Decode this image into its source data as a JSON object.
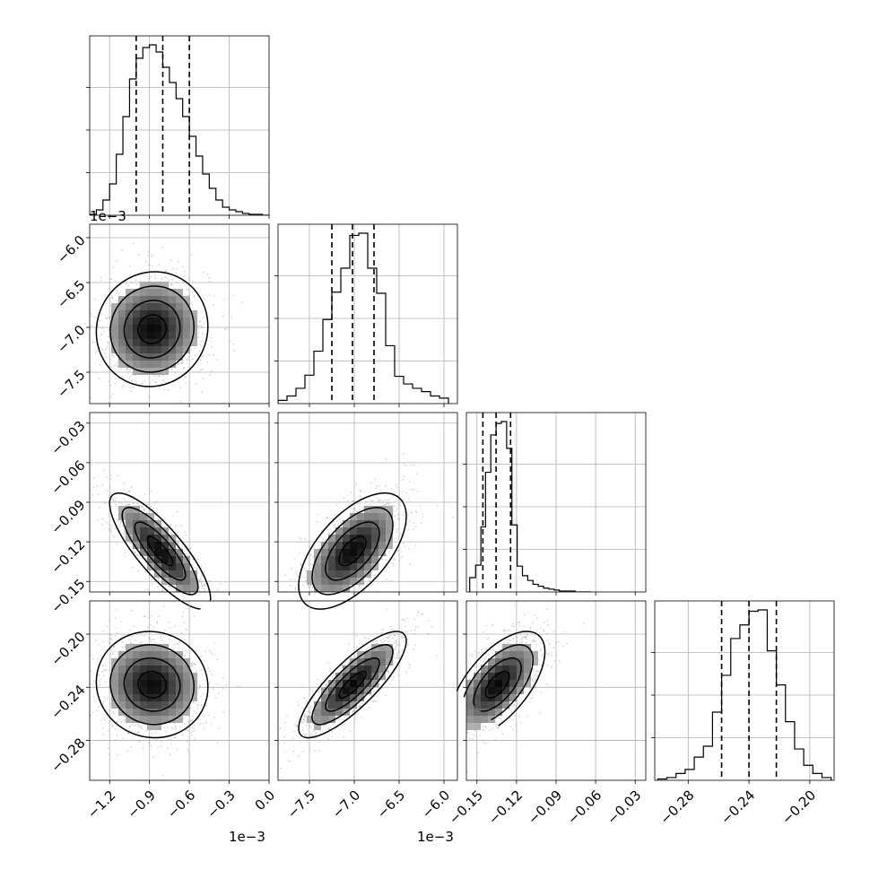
{
  "chart_data": {
    "type": "corner",
    "parameters": 4,
    "grid": true,
    "quantile_lines": "dashed",
    "offset_labels": {
      "x0": "1e−3",
      "x1": "1e−3",
      "y1": "1e−3"
    },
    "axes": [
      {
        "range": [
          -1.35,
          0.0
        ],
        "ticks": [
          -1.2,
          -0.9,
          -0.6,
          -0.3,
          0.0
        ],
        "tick_labels": [
          "−1.2",
          "−0.9",
          "−0.6",
          "−0.3",
          "0.0"
        ]
      },
      {
        "range": [
          -7.85,
          -5.85
        ],
        "ticks": [
          -7.5,
          -7.0,
          -6.5,
          -6.0
        ],
        "tick_labels": [
          "−7.5",
          "−7.0",
          "−6.5",
          "−6.0"
        ]
      },
      {
        "range": [
          -0.158,
          -0.022
        ],
        "ticks": [
          -0.15,
          -0.12,
          -0.09,
          -0.06,
          -0.03
        ],
        "tick_labels": [
          "−0.15",
          "−0.12",
          "−0.09",
          "−0.06",
          "−0.03"
        ]
      },
      {
        "range": [
          -0.302,
          -0.184
        ],
        "ticks": [
          -0.28,
          -0.24,
          -0.2
        ],
        "tick_labels": [
          "−0.28",
          "−0.24",
          "−0.20"
        ]
      }
    ],
    "y_axes": [
      null,
      {
        "range": [
          -7.85,
          -5.85
        ],
        "ticks": [
          -7.5,
          -7.0,
          -6.5,
          -6.0
        ],
        "tick_labels": [
          "−7.5",
          "−7.0",
          "−6.5",
          "−6.0"
        ]
      },
      {
        "range": [
          -0.158,
          -0.022
        ],
        "ticks": [
          -0.15,
          -0.12,
          -0.09,
          -0.06,
          -0.03
        ],
        "tick_labels": [
          "−0.15",
          "−0.12",
          "−0.09",
          "−0.06",
          "−0.03"
        ]
      },
      {
        "range": [
          -0.31,
          -0.175
        ],
        "ticks": [
          -0.28,
          -0.24,
          -0.2
        ],
        "tick_labels": [
          "−0.28",
          "−0.24",
          "−0.20"
        ]
      }
    ],
    "marginals": [
      {
        "quantiles": [
          -1.0,
          -0.8,
          -0.6
        ],
        "bins": [
          -1.35,
          -1.3,
          -1.25,
          -1.2,
          -1.15,
          -1.1,
          -1.05,
          -1.0,
          -0.95,
          -0.9,
          -0.85,
          -0.8,
          -0.75,
          -0.7,
          -0.65,
          -0.6,
          -0.55,
          -0.5,
          -0.45,
          -0.4,
          -0.35,
          -0.3,
          -0.25,
          -0.2,
          -0.15,
          -0.1,
          -0.05,
          0.0
        ],
        "counts": [
          1,
          6,
          17,
          35,
          68,
          110,
          152,
          175,
          187,
          190,
          182,
          165,
          148,
          130,
          110,
          88,
          66,
          46,
          30,
          17,
          9,
          6,
          4,
          2,
          1,
          1,
          0
        ]
      },
      {
        "quantiles": [
          -7.25,
          -7.02,
          -6.78
        ],
        "bins": [
          -7.85,
          -7.75,
          -7.65,
          -7.55,
          -7.45,
          -7.35,
          -7.25,
          -7.15,
          -7.05,
          -6.95,
          -6.85,
          -6.75,
          -6.65,
          -6.55,
          -6.45,
          -6.35,
          -6.25,
          -6.15,
          -6.05,
          -5.95
        ],
        "counts": [
          3,
          7,
          14,
          26,
          48,
          77,
          102,
          124,
          154,
          156,
          124,
          101,
          53,
          25,
          18,
          14,
          11,
          7,
          5
        ]
      },
      {
        "quantiles": [
          -0.1455,
          -0.1355,
          -0.1245
        ],
        "bins": [
          -0.1555,
          -0.151,
          -0.147,
          -0.1435,
          -0.1395,
          -0.1355,
          -0.1315,
          -0.1275,
          -0.1235,
          -0.1195,
          -0.1155,
          -0.1115,
          -0.1075,
          -0.1035,
          -0.0995,
          -0.0955,
          -0.0915,
          -0.0875,
          -0.0835,
          -0.0795,
          -0.0755,
          -0.0715,
          -0.0675,
          -0.0635
        ],
        "counts": [
          15,
          28,
          68,
          125,
          164,
          176,
          178,
          150,
          70,
          27,
          17,
          12,
          8,
          6,
          4,
          3,
          2,
          1,
          1,
          1,
          0,
          0,
          0
        ]
      },
      {
        "quantiles": [
          -0.258,
          -0.24,
          -0.222
        ],
        "bins": [
          -0.3,
          -0.294,
          -0.288,
          -0.282,
          -0.276,
          -0.27,
          -0.264,
          -0.258,
          -0.252,
          -0.246,
          -0.24,
          -0.234,
          -0.228,
          -0.222,
          -0.216,
          -0.21,
          -0.204,
          -0.198,
          -0.192,
          -0.186
        ],
        "counts": [
          1,
          2,
          5,
          8,
          17,
          25,
          50,
          77,
          104,
          114,
          124,
          125,
          95,
          70,
          43,
          23,
          11,
          5,
          2
        ]
      }
    ],
    "joint": [
      {
        "row": 1,
        "col": 0,
        "mean": [
          -0.88,
          -7.02
        ],
        "sd": [
          0.21,
          0.32
        ],
        "corr": 0.05
      },
      {
        "row": 2,
        "col": 0,
        "mean": [
          -0.82,
          -0.127
        ],
        "sd": [
          0.19,
          0.022
        ],
        "corr": -0.82
      },
      {
        "row": 2,
        "col": 1,
        "mean": [
          -7.02,
          -0.127
        ],
        "sd": [
          0.3,
          0.022
        ],
        "corr": 0.6
      },
      {
        "row": 3,
        "col": 0,
        "mean": [
          -0.88,
          -0.238
        ],
        "sd": [
          0.21,
          0.02
        ],
        "corr": -0.05
      },
      {
        "row": 3,
        "col": 1,
        "mean": [
          -7.02,
          -0.238
        ],
        "sd": [
          0.3,
          0.02
        ],
        "corr": 0.82
      },
      {
        "row": 3,
        "col": 2,
        "mean": [
          -0.1345,
          -0.238
        ],
        "sd": [
          0.018,
          0.02
        ],
        "corr": 0.62
      }
    ]
  }
}
